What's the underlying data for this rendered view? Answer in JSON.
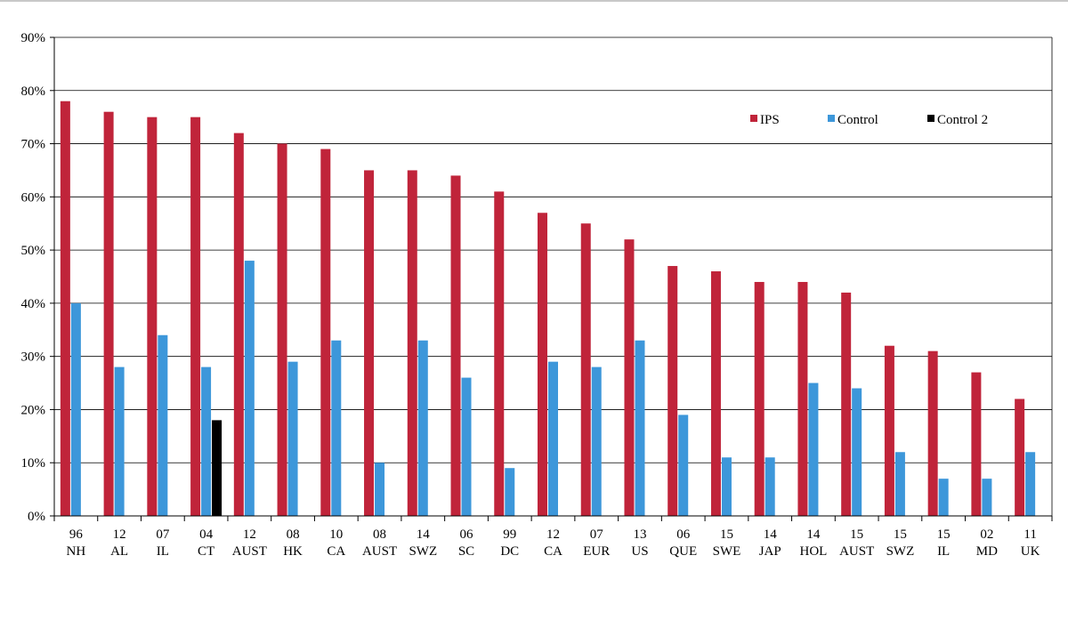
{
  "chart_data": {
    "type": "bar",
    "title": "",
    "xlabel": "",
    "ylabel": "",
    "ylim": [
      0,
      90
    ],
    "yticks": [
      "0%",
      "10%",
      "20%",
      "30%",
      "40%",
      "50%",
      "60%",
      "70%",
      "80%",
      "90%"
    ],
    "grid": true,
    "legend_position": "top-right",
    "categories": [
      [
        "96",
        "NH"
      ],
      [
        "12",
        "AL"
      ],
      [
        "07",
        "IL"
      ],
      [
        "04",
        "CT"
      ],
      [
        "12",
        "AUST"
      ],
      [
        "08",
        "HK"
      ],
      [
        "10",
        "CA"
      ],
      [
        "08",
        "AUST"
      ],
      [
        "14",
        "SWZ"
      ],
      [
        "06",
        "SC"
      ],
      [
        "99",
        "DC"
      ],
      [
        "12",
        "CA"
      ],
      [
        "07",
        "EUR"
      ],
      [
        "13",
        "US"
      ],
      [
        "06",
        "QUE"
      ],
      [
        "15",
        "SWE"
      ],
      [
        "14",
        "JAP"
      ],
      [
        "14",
        "HOL"
      ],
      [
        "15",
        "AUST"
      ],
      [
        "15",
        "SWZ"
      ],
      [
        "15",
        "IL"
      ],
      [
        "02",
        "MD"
      ],
      [
        "11",
        "UK"
      ]
    ],
    "series": [
      {
        "name": "IPS",
        "color": "#c0243a",
        "values": [
          78,
          76,
          75,
          75,
          72,
          70,
          69,
          65,
          65,
          64,
          61,
          57,
          55,
          52,
          47,
          46,
          44,
          44,
          42,
          32,
          31,
          27,
          22
        ]
      },
      {
        "name": "Control",
        "color": "#3d97da",
        "values": [
          40,
          28,
          34,
          28,
          48,
          29,
          33,
          10,
          33,
          26,
          9,
          29,
          28,
          33,
          19,
          11,
          11,
          25,
          24,
          12,
          7,
          7,
          12
        ]
      },
      {
        "name": "Control 2",
        "color": "#000000",
        "values": [
          null,
          null,
          null,
          18,
          null,
          null,
          null,
          null,
          null,
          null,
          null,
          null,
          null,
          null,
          null,
          null,
          null,
          null,
          null,
          null,
          null,
          null,
          null
        ]
      }
    ]
  }
}
